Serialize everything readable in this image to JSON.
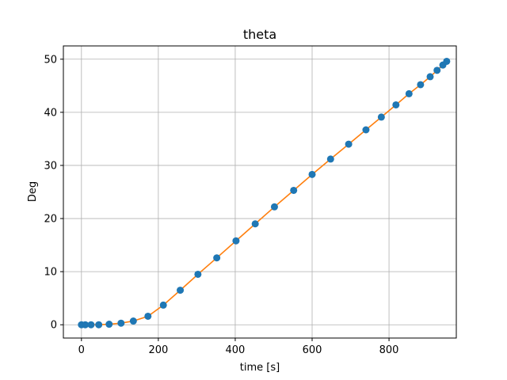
{
  "chart_data": {
    "type": "line",
    "title": "theta",
    "xlabel": "time [s]",
    "ylabel": "Deg",
    "xlim": [
      -47,
      975
    ],
    "ylim": [
      -2.5,
      52.5
    ],
    "grid": true,
    "xticks": [
      0,
      200,
      400,
      600,
      800
    ],
    "yticks": [
      0,
      10,
      20,
      30,
      40,
      50
    ],
    "colors": {
      "points": "#1f77b4",
      "line": "#ff7f0e",
      "grid": "#b0b0b0"
    },
    "series": [
      {
        "kind": "scatter",
        "x": [
          0,
          10,
          25,
          45,
          72,
          103,
          135,
          173,
          213,
          257,
          303,
          352,
          402,
          452,
          502,
          552,
          600,
          648,
          695,
          740,
          780,
          818,
          852,
          882,
          907,
          925,
          940,
          950
        ],
        "y": [
          0,
          0,
          0,
          0,
          0.1,
          0.3,
          0.7,
          1.6,
          3.7,
          6.5,
          9.5,
          12.6,
          15.8,
          19.0,
          22.2,
          25.3,
          28.3,
          31.2,
          34.0,
          36.7,
          39.1,
          41.4,
          43.5,
          45.2,
          46.7,
          47.9,
          48.9,
          49.6
        ]
      },
      {
        "kind": "line",
        "x": [
          0,
          10,
          25,
          45,
          72,
          103,
          135,
          173,
          213,
          257,
          303,
          352,
          402,
          452,
          502,
          552,
          600,
          648,
          695,
          740,
          780,
          818,
          852,
          882,
          907,
          925,
          940,
          950
        ],
        "y": [
          0,
          0,
          0,
          0,
          0.1,
          0.3,
          0.7,
          1.6,
          3.7,
          6.5,
          9.5,
          12.6,
          15.8,
          19.0,
          22.2,
          25.3,
          28.3,
          31.2,
          34.0,
          36.7,
          39.1,
          41.4,
          43.5,
          45.2,
          46.7,
          47.9,
          48.9,
          49.6
        ]
      }
    ]
  }
}
